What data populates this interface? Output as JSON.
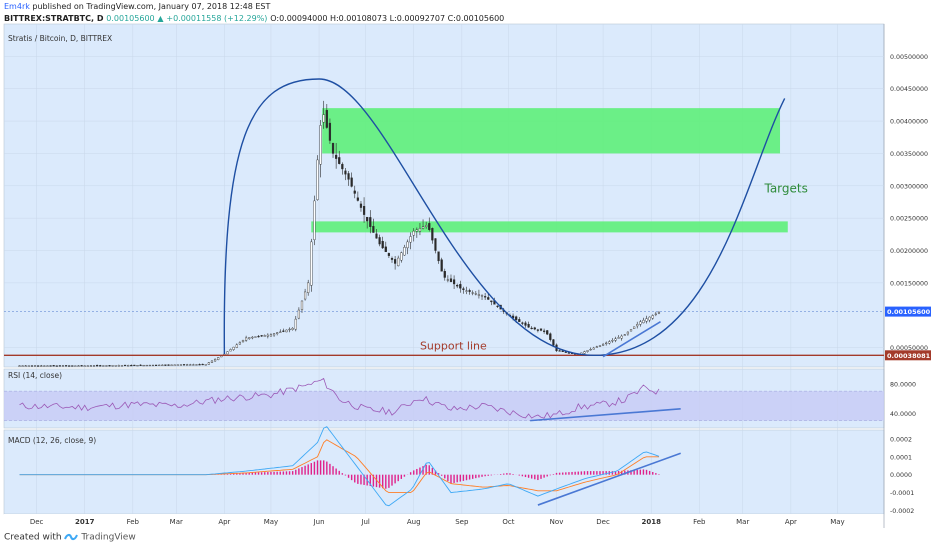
{
  "header": {
    "author": "Em4rk",
    "published": "published on TradingView.com, January 07, 2018 12:48 EST",
    "ticker_line": "BITTREX:STRATBTC, D",
    "last": "0.00105600",
    "change": "+0.00011558 (+12.29%)",
    "ohlc": "O:0.00094000 H:0.00108073 L:0.00092707 C:0.00105600"
  },
  "footer": {
    "created_with": "Created with",
    "brand": "TradingView"
  },
  "colors": {
    "pane_bg": "#dbeafc",
    "candle": "#2a2a2a",
    "curve": "#1e4fa3",
    "zone": "#5ef07a",
    "support": "#a33a2a",
    "rsi_line": "#9b59b6",
    "rsi_band": "#c7cbf5",
    "trend": "#4a78d4",
    "macd_line": "#3fa9f5",
    "signal_line": "#ff7f27",
    "hist": "#e0218a",
    "target_text": "#2e8b3a",
    "support_text": "#a33a2a"
  },
  "chart_data": [
    {
      "type": "candlestick",
      "title": "Stratis / Bitcoin, D, BITTREX",
      "ylim": [
        0.0002,
        0.0055
      ],
      "y_ticks": [
        "0.00500000",
        "0.00450000",
        "0.00400000",
        "0.00350000",
        "0.00300000",
        "0.00250000",
        "0.00200000",
        "0.00150000",
        "0.00050000"
      ],
      "x_ticks": [
        "Dec",
        "2017",
        "Feb",
        "Mar",
        "Apr",
        "May",
        "Jun",
        "Jul",
        "Aug",
        "Sep",
        "Oct",
        "Nov",
        "Dec",
        "2018",
        "Feb",
        "Mar",
        "Apr",
        "May"
      ],
      "price_path": {
        "dates": [
          "2016-11-20",
          "2017-01-01",
          "2017-02-15",
          "2017-03-20",
          "2017-04-01",
          "2017-04-15",
          "2017-05-01",
          "2017-05-15",
          "2017-05-25",
          "2017-05-31",
          "2017-06-03",
          "2017-06-10",
          "2017-06-20",
          "2017-07-01",
          "2017-07-10",
          "2017-07-20",
          "2017-08-01",
          "2017-08-10",
          "2017-08-20",
          "2017-09-01",
          "2017-09-15",
          "2017-10-01",
          "2017-10-15",
          "2017-10-25",
          "2017-11-01",
          "2017-11-15",
          "2017-12-01",
          "2017-12-15",
          "2017-12-25",
          "2018-01-07"
        ],
        "close": [
          0.00022,
          0.00022,
          0.00023,
          0.00024,
          0.0004,
          0.00065,
          0.0007,
          0.0008,
          0.0015,
          0.0034,
          0.0042,
          0.0035,
          0.0031,
          0.0025,
          0.0021,
          0.0018,
          0.0023,
          0.0024,
          0.0016,
          0.0014,
          0.0013,
          0.001,
          0.0008,
          0.00075,
          0.00045,
          0.0004,
          0.00055,
          0.0007,
          0.0009,
          0.001056
        ]
      },
      "zones": [
        {
          "from": 0.0035,
          "to": 0.0042,
          "start": "2017-06-03",
          "end": "2018-03-25"
        },
        {
          "from": 0.00228,
          "to": 0.00245,
          "start": "2017-05-27",
          "end": "2018-03-30"
        }
      ],
      "support": {
        "value": 0.00038081,
        "label": "Support line",
        "price_label": "0.00038081"
      },
      "last_price": {
        "value": 0.001056,
        "label": "0.00105600"
      },
      "arc": {
        "start_date": "2017-04-01",
        "start_value": 0.0004,
        "peak_date": "2017-06-01",
        "peak_value": 0.00465,
        "bottom_date": "2017-11-25",
        "bottom_value": 0.00038,
        "end_date": "2018-03-28",
        "end_value": 0.00435
      },
      "trendline": {
        "start_date": "2017-12-01",
        "start_value": 0.00036,
        "end_date": "2018-01-07",
        "end_value": 0.0009
      },
      "annotation": {
        "text": "Targets",
        "date": "2018-03-15",
        "value": 0.0029
      }
    },
    {
      "type": "line",
      "title": "RSI (14, close)",
      "ylim": [
        20,
        100
      ],
      "y_ticks": [
        "80.0000",
        "40.0000"
      ],
      "band": [
        30,
        70
      ],
      "series": [
        {
          "x_dates": [
            "2016-11-20",
            "2017-01-01",
            "2017-02-01",
            "2017-03-01",
            "2017-04-01",
            "2017-05-01",
            "2017-05-25",
            "2017-06-03",
            "2017-06-15",
            "2017-07-01",
            "2017-07-20",
            "2017-08-05",
            "2017-08-25",
            "2017-09-15",
            "2017-10-01",
            "2017-10-20",
            "2017-11-01",
            "2017-11-15",
            "2017-12-01",
            "2017-12-15",
            "2017-12-28",
            "2018-01-07"
          ],
          "values": [
            50,
            48,
            52,
            50,
            60,
            65,
            78,
            85,
            58,
            45,
            42,
            62,
            45,
            50,
            42,
            35,
            38,
            48,
            52,
            58,
            75,
            68
          ]
        }
      ],
      "trendline": {
        "start_date": "2017-10-15",
        "start_value": 30,
        "end_date": "2018-01-20",
        "end_value": 46
      }
    },
    {
      "type": "line",
      "title": "MACD (12, 26, close, 9)",
      "ylim": [
        -0.00022,
        0.00025
      ],
      "y_ticks": [
        "0.0002",
        "0.0001",
        "0.0000",
        "-0.0001",
        "-0.0002"
      ],
      "series": [
        {
          "x_dates": [
            "2016-11-20",
            "2017-03-20",
            "2017-04-15",
            "2017-05-15",
            "2017-05-31",
            "2017-06-05",
            "2017-06-25",
            "2017-07-15",
            "2017-07-31",
            "2017-08-10",
            "2017-08-25",
            "2017-09-15",
            "2017-10-01",
            "2017-10-20",
            "2017-11-01",
            "2017-11-20",
            "2017-12-10",
            "2017-12-28",
            "2018-01-07"
          ],
          "values": [
            0,
            0,
            2e-05,
            5e-05,
            0.00018,
            0.00028,
            5e-05,
            -0.00018,
            -8e-05,
            8e-05,
            -0.0001,
            -8e-05,
            -5e-05,
            -0.00012,
            -8e-05,
            -2e-05,
            2e-05,
            0.00013,
            0.0001
          ]
        },
        {
          "x_dates": [
            "2016-11-20",
            "2017-03-20",
            "2017-04-15",
            "2017-05-15",
            "2017-05-31",
            "2017-06-05",
            "2017-06-25",
            "2017-07-15",
            "2017-07-31",
            "2017-08-10",
            "2017-08-25",
            "2017-09-15",
            "2017-10-01",
            "2017-10-20",
            "2017-11-01",
            "2017-11-20",
            "2017-12-10",
            "2017-12-28",
            "2018-01-07"
          ],
          "values": [
            0,
            0,
            1e-05,
            3e-05,
            0.0001,
            0.0002,
            0.0001,
            -0.0001,
            -0.0001,
            2e-05,
            -5e-05,
            -7e-05,
            -6e-05,
            -9e-05,
            -9e-05,
            -4e-05,
            0,
            0.0001,
            0.0001
          ]
        }
      ],
      "trendline": {
        "start_date": "2017-10-20",
        "start_value": -0.00017,
        "end_date": "2018-01-20",
        "end_value": 0.00012
      }
    }
  ]
}
